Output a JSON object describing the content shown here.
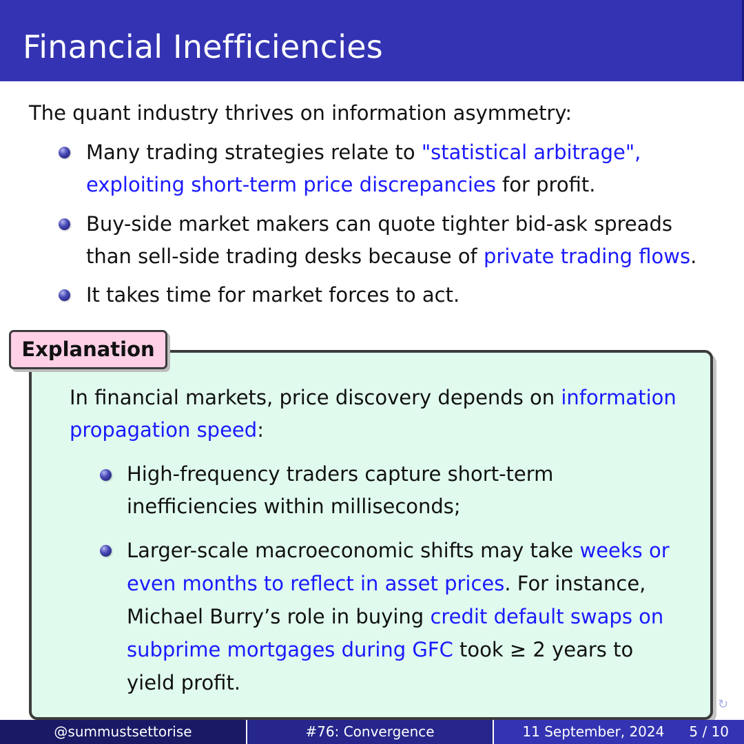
{
  "slide": {
    "title": "Financial Inefficiencies"
  },
  "intro": "The quant industry thrives on information asymmetry:",
  "bullets": [
    {
      "line1_plain": "Many trading strategies relate to ",
      "line1_link": "\"statistical arbitrage\",",
      "line2_link": "exploiting short-term price discrepancies",
      "line2_plain": " for profit."
    },
    {
      "line1_plain": "Buy-side market makers can quote tighter bid-ask spreads",
      "line2_plain": "than sell-side trading desks because of ",
      "line2_link": "private trading flows",
      "line2_end": "."
    },
    {
      "line1_plain": "It takes time for market forces to act."
    }
  ],
  "explanation": {
    "title": "Explanation",
    "intro_line1_plain": "In financial markets, price discovery depends on ",
    "intro_line1_link": "information",
    "intro_line2_link": "propagation speed",
    "intro_line2_plain": ":",
    "items": [
      {
        "line1": "High-frequency traders capture short-term",
        "line2": "inefficiencies within milliseconds;"
      },
      {
        "line1_plain": "Larger-scale macroeconomic shifts may take ",
        "line1_link": "weeks or",
        "line2_link": "even months to reflect in asset prices",
        "line2_plain": ". For instance,",
        "line3_plain": "Michael Burry’s role in buying ",
        "line3_link": "credit default swaps on",
        "line4_link": "subprime mortgages during GFC",
        "line4_plain": " took ≥ 2 years to",
        "line5": "yield profit."
      }
    ]
  },
  "footer": {
    "author": "@summustsettorise",
    "episode": "#76: Convergence",
    "date": "11 September, 2024",
    "page": "5 / 10"
  },
  "colors": {
    "title_bar": "#3333b3",
    "link": "#1a1aff",
    "explanation_bg": "#e0fbee",
    "explanation_tab_bg": "#ffd0e6",
    "footer_left": "#191966",
    "footer_mid": "#26268c",
    "footer_right": "#3333b3"
  },
  "icons": {
    "bullet": "ball-bullet-icon",
    "nav": "navigation-loop-icon"
  }
}
